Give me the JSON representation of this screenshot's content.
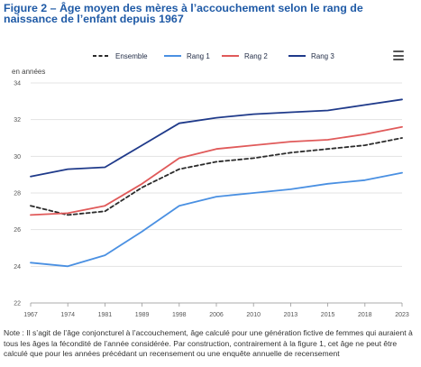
{
  "header": {
    "title": "Figure 2 – Âge moyen des mères à l’accouchement selon le rang de naissance de l’enfant depuis 1967"
  },
  "toolbar": {
    "menu_icon": "hamburger-menu-icon"
  },
  "chart_data": {
    "type": "line",
    "title": "Figure 2 – Âge moyen des mères à l’accouchement selon le rang de naissance de l’enfant depuis 1967",
    "ylabel": "en années",
    "xlabel": "",
    "x": [
      1967,
      1974,
      1981,
      1989,
      1998,
      2006,
      2010,
      2013,
      2015,
      2018,
      2023
    ],
    "x_tick_labels": [
      "1967",
      "1974",
      "1981",
      "1989",
      "1998",
      "2006",
      "2010",
      "2013",
      "2015",
      "2018",
      "2023"
    ],
    "ylim": [
      22,
      34
    ],
    "y_ticks": [
      22,
      24,
      26,
      28,
      30,
      32,
      34
    ],
    "grid": true,
    "legend_position": "top",
    "series": [
      {
        "name": "Ensemble",
        "color": "#2b2b2b",
        "dashed": true,
        "values": [
          27.3,
          26.8,
          27.0,
          28.3,
          29.3,
          29.7,
          29.9,
          30.2,
          30.4,
          30.6,
          31.0
        ]
      },
      {
        "name": "Rang 1",
        "color": "#4a90e2",
        "dashed": false,
        "values": [
          24.2,
          24.0,
          24.6,
          25.9,
          27.3,
          27.8,
          28.0,
          28.2,
          28.5,
          28.7,
          29.1
        ]
      },
      {
        "name": "Rang 2",
        "color": "#e05a5a",
        "dashed": false,
        "values": [
          26.8,
          26.9,
          27.3,
          28.5,
          29.9,
          30.4,
          30.6,
          30.8,
          30.9,
          31.2,
          31.6
        ]
      },
      {
        "name": "Rang 3",
        "color": "#1f3a8a",
        "dashed": false,
        "values": [
          28.9,
          29.3,
          29.4,
          30.6,
          31.8,
          32.1,
          32.3,
          32.4,
          32.5,
          32.8,
          33.1
        ]
      }
    ]
  },
  "footer": {
    "note": "Note : Il s’agit de l’âge conjoncturel à l’accouchement, âge calculé pour une génération fictive de femmes qui auraient à tous les âges la fécondité de l’année considérée. Par construction, contrairement à la figure 1, cet âge ne peut être calculé que pour les années précédant un recensement ou une enquête annuelle de recensement"
  }
}
